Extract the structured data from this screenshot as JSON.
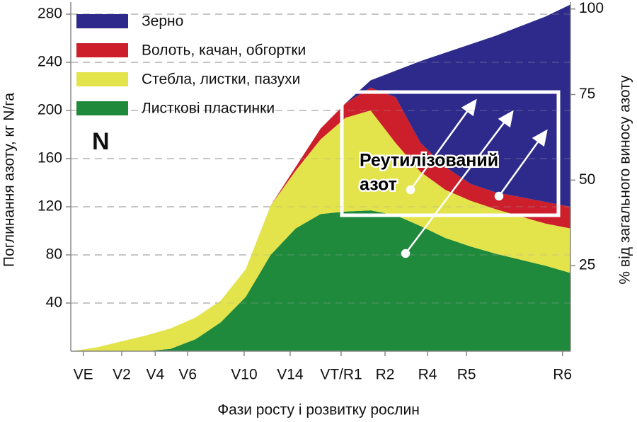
{
  "chart_data": {
    "type": "stacked_area",
    "x_label": "Фази росту і розвитку рослин",
    "y_label": "Поглинання азоту, кг N/га",
    "y2_label": "% від загального виносу азоту",
    "annotations": [
      "N",
      "Реутилізований",
      "азот"
    ],
    "x": [
      0,
      5,
      10,
      15,
      20,
      25,
      30,
      35,
      40,
      45,
      50,
      55,
      60,
      65,
      70,
      75,
      80,
      85,
      90,
      95,
      100
    ],
    "xlim": [
      0,
      100
    ],
    "xticks": [
      {
        "value": 2.5,
        "label": "VE"
      },
      {
        "value": 10.2,
        "label": "V2"
      },
      {
        "value": 16.9,
        "label": "V4"
      },
      {
        "value": 23.4,
        "label": "V6"
      },
      {
        "value": 34.7,
        "label": "V10"
      },
      {
        "value": 43.9,
        "label": "V14"
      },
      {
        "value": 54.1,
        "label": "VT/R1"
      },
      {
        "value": 62.9,
        "label": "R2"
      },
      {
        "value": 71.4,
        "label": "R4"
      },
      {
        "value": 79.2,
        "label": "R5"
      },
      {
        "value": 98.4,
        "label": "R6"
      }
    ],
    "ylim": [
      0,
      290
    ],
    "yticks": [
      40,
      80,
      120,
      160,
      200,
      240,
      280
    ],
    "y2lim": [
      0,
      102
    ],
    "y2ticks": [
      25,
      50,
      75,
      100
    ],
    "grid": true,
    "legend": "top-left",
    "series": [
      {
        "name": "Листкові пластинки",
        "color": "#1f8a3b",
        "values": [
          0,
          0,
          0,
          0,
          2,
          10,
          24,
          45,
          80,
          102,
          114,
          116,
          117,
          113,
          104,
          94,
          87,
          81,
          76,
          71,
          65
        ]
      },
      {
        "name": "Стебла, листки, пазухи",
        "color": "#e3e34b",
        "values": [
          0,
          3,
          8,
          13,
          17,
          18,
          18,
          23,
          41,
          48,
          62,
          78,
          83,
          60,
          45,
          40,
          38,
          37,
          36,
          35,
          37
        ]
      },
      {
        "name": "Волоть, качан, обгортки",
        "color": "#cc1f2b",
        "values": [
          0,
          0,
          0,
          0,
          0,
          0,
          0,
          0,
          0,
          3,
          9,
          12,
          19,
          38,
          24,
          19,
          14,
          14,
          16,
          18,
          18
        ]
      },
      {
        "name": "Зерно",
        "color": "#2e2a8c",
        "values": [
          0,
          0,
          0,
          0,
          0,
          0,
          0,
          0,
          0,
          0,
          0,
          0,
          6,
          22,
          68,
          95,
          116,
          130,
          142,
          154,
          168
        ]
      }
    ]
  }
}
